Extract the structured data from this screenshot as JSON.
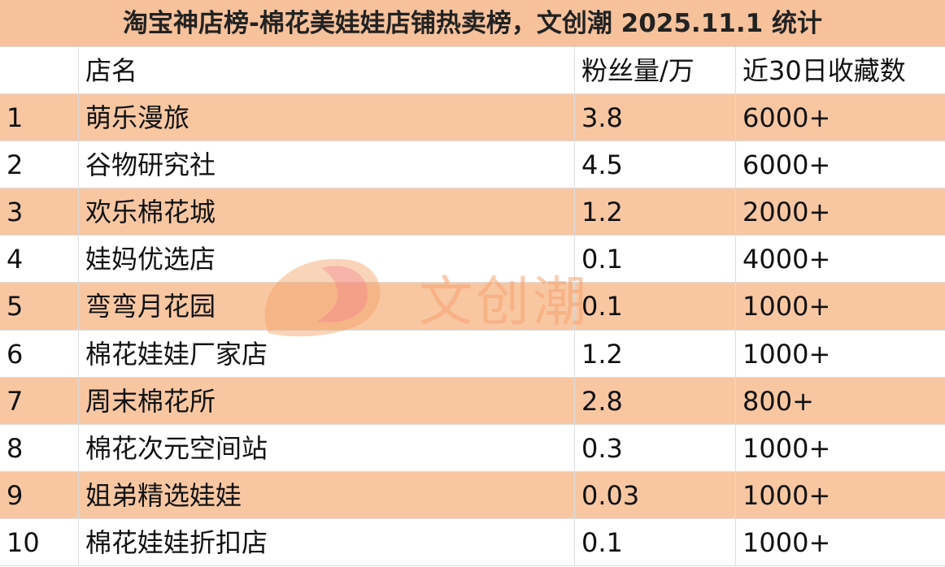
{
  "header": {
    "title": "淘宝神店榜-棉花美娃娃店铺热卖榜，文创潮 2025.11.1 统计"
  },
  "table": {
    "columns": [
      "",
      "店名",
      "粉丝量/万",
      "近30日收藏数"
    ],
    "rows": [
      [
        "1",
        "萌乐漫旅",
        "3.8",
        "6000+"
      ],
      [
        "2",
        "谷物研究社",
        "4.5",
        "6000+"
      ],
      [
        "3",
        "欢乐棉花城",
        "1.2",
        "2000+"
      ],
      [
        "4",
        "娃妈优选店",
        "0.1",
        "4000+"
      ],
      [
        "5",
        "弯弯月花园",
        "0.1",
        "1000+"
      ],
      [
        "6",
        "棉花娃娃厂家店",
        "1.2",
        "1000+"
      ],
      [
        "7",
        "周末棉花所",
        "2.8",
        "800+"
      ],
      [
        "8",
        "棉花次元空间站",
        "0.3",
        "1000+"
      ],
      [
        "9",
        "姐弟精选娃娃",
        "0.03",
        "1000+"
      ],
      [
        "10",
        "棉花娃娃折扣店",
        "0.1",
        "1000+"
      ]
    ]
  },
  "watermark": "文创潮"
}
